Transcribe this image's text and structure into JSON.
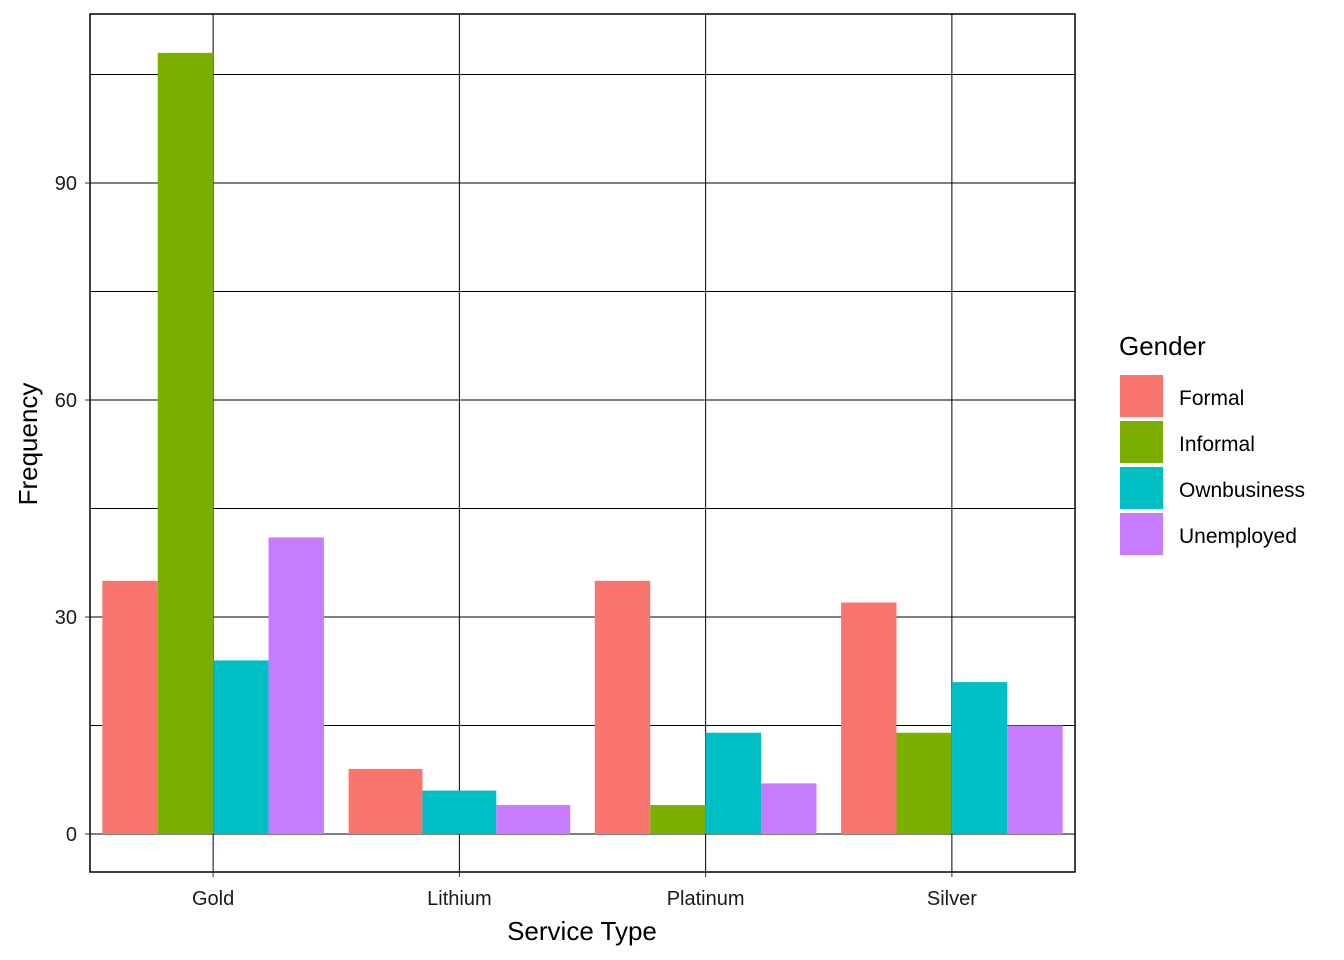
{
  "chart_data": {
    "type": "bar",
    "categories": [
      "Gold",
      "Lithium",
      "Platinum",
      "Silver"
    ],
    "series": [
      {
        "name": "Formal",
        "color": "#F8766D",
        "values": [
          35,
          9,
          35,
          32
        ]
      },
      {
        "name": "Informal",
        "color": "#7CAE00",
        "values": [
          108,
          null,
          4,
          14
        ]
      },
      {
        "name": "Ownbusiness",
        "color": "#00BFC4",
        "values": [
          24,
          6,
          14,
          21
        ]
      },
      {
        "name": "Unemployed",
        "color": "#C77CFF",
        "values": [
          41,
          4,
          7,
          15
        ]
      }
    ],
    "xlabel": "Service Type",
    "ylabel": "Frequency",
    "legend_title": "Gender",
    "legend_position": "right",
    "yticks": [
      0,
      30,
      60,
      90
    ],
    "ylim": [
      -5.4,
      113.4
    ],
    "grid": true
  }
}
